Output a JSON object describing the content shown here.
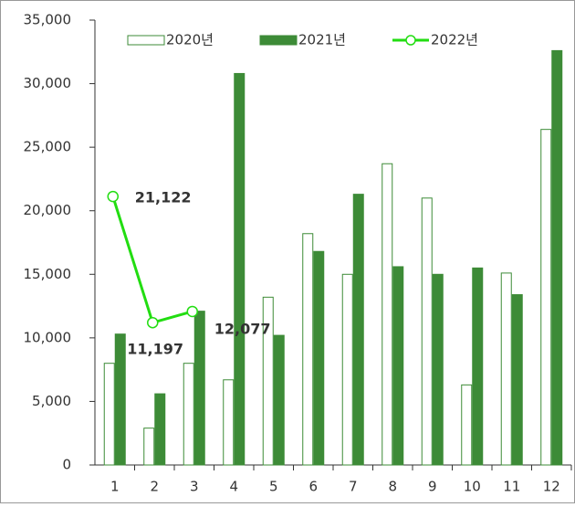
{
  "chart_data": {
    "type": "bar",
    "categories": [
      "1",
      "2",
      "3",
      "4",
      "5",
      "6",
      "7",
      "8",
      "9",
      "10",
      "11",
      "12"
    ],
    "series": [
      {
        "name": "2020년",
        "color": "#3d8b37",
        "style": "outline",
        "values": [
          8000,
          2900,
          8000,
          6700,
          13200,
          18200,
          15000,
          23700,
          21000,
          6300,
          15100,
          26400
        ]
      },
      {
        "name": "2021년",
        "color": "#3d8b37",
        "style": "filled",
        "values": [
          10300,
          5600,
          12100,
          30800,
          10200,
          16800,
          21300,
          15600,
          15000,
          15500,
          13400,
          32600
        ]
      },
      {
        "name": "2022년",
        "type": "line",
        "color": "#22dd11",
        "values": [
          21122,
          11197,
          12077,
          null,
          null,
          null,
          null,
          null,
          null,
          null,
          null,
          null
        ],
        "value_labels": [
          "21,122",
          "11,197",
          "12,077",
          null,
          null,
          null,
          null,
          null,
          null,
          null,
          null,
          null
        ]
      }
    ],
    "ylim": [
      0,
      35000
    ],
    "yticks": [
      0,
      {
        "value": 5000,
        "label": "5,000"
      },
      {
        "value": 10000,
        "label": "10,000"
      },
      {
        "value": 15000,
        "label": "15,000"
      },
      {
        "value": 20000,
        "label": "20,000"
      },
      {
        "value": 25000,
        "label": "25,000"
      },
      {
        "value": 30000,
        "label": "30,000"
      },
      {
        "value": 35000,
        "label": "35,000"
      }
    ],
    "legend": "top"
  }
}
